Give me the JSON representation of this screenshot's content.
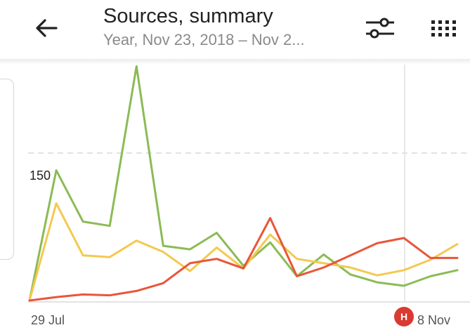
{
  "header": {
    "title": "Sources, summary",
    "subtitle": "Year, Nov 23, 2018 – Nov 2..."
  },
  "icons": {
    "back": "arrow-left-icon",
    "filter": "sliders-icon",
    "menu": "grid-dots-icon"
  },
  "marker": {
    "label": "H",
    "color": "#d93a32"
  },
  "chart_data": {
    "type": "line",
    "x_labels": [
      "29 Jul",
      "8 Nov"
    ],
    "y_tick_labels": [
      150
    ],
    "ylim": [
      0,
      280
    ],
    "grid": "dashed line near top",
    "series": [
      {
        "color": "#8bbb55",
        "values": [
          0,
          150,
          91,
          86,
          270,
          63,
          59,
          78,
          40,
          67,
          28,
          53,
          30,
          21,
          17,
          28,
          35
        ]
      },
      {
        "color": "#f5c84f",
        "values": [
          0,
          112,
          52,
          50,
          69,
          56,
          34,
          61,
          37,
          76,
          48,
          43,
          38,
          29,
          35,
          47,
          65
        ]
      },
      {
        "color": "#e8563a",
        "values": [
          0,
          4,
          7,
          6,
          11,
          20,
          43,
          48,
          37,
          95,
          28,
          38,
          52,
          66,
          72,
          49,
          49
        ]
      }
    ]
  }
}
